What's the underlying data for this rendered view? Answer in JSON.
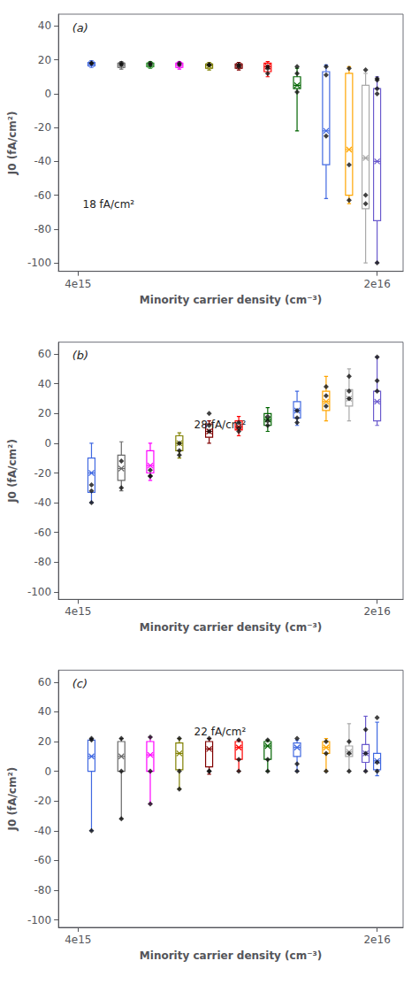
{
  "chart_data": [
    {
      "type": "boxplot",
      "title": "(a)",
      "xlabel": "Minority carrier density (cm⁻³)",
      "ylabel": "J0 (fA/cm²)",
      "annotations": [
        "18 fA/cm²"
      ],
      "log": "x",
      "grid": false,
      "xlim": [
        3600000000000000.0,
        2.3e+16
      ],
      "xticks": [
        {
          "value": 4000000000000000.0,
          "label": "4e15"
        },
        {
          "value": 2e+16,
          "label": "2e16"
        }
      ],
      "ylim": [
        -105,
        47
      ],
      "yticks": [
        -100,
        -80,
        -60,
        -40,
        -20,
        0,
        20,
        40
      ],
      "series": [
        {
          "type": "boxplot",
          "marker": "x",
          "x": [
            4300000000000000.0,
            5050000000000000.0,
            5900000000000000.0,
            6900000000000000.0,
            8100000000000000.0,
            9500000000000000.0,
            1.11e+16,
            1.3e+16,
            1.52e+16,
            1.72e+16,
            1.88e+16,
            2e+16
          ],
          "colors": [
            "#4169E1",
            "#696969",
            "#228B22",
            "#FF00FF",
            "#808000",
            "#800000",
            "#FF0000",
            "#006400",
            "#4169E1",
            "#FFA500",
            "#A9A9A9",
            "#6A5ACD"
          ],
          "boxes": [
            {
              "q1": 16.5,
              "med": 17.5,
              "q3": 18.5,
              "whislo": 15.5,
              "whishi": 19.5,
              "mean": 17.5
            },
            {
              "q1": 15.5,
              "med": 17.0,
              "q3": 18.0,
              "whislo": 14.5,
              "whishi": 19.0,
              "mean": 17.0
            },
            {
              "q1": 16.0,
              "med": 17.0,
              "q3": 18.0,
              "whislo": 15.0,
              "whishi": 19.0,
              "mean": 17.0
            },
            {
              "q1": 15.5,
              "med": 17.0,
              "q3": 18.0,
              "whislo": 14.5,
              "whishi": 19.0,
              "mean": 17.0
            },
            {
              "q1": 15.0,
              "med": 16.5,
              "q3": 17.5,
              "whislo": 14.0,
              "whishi": 18.5,
              "mean": 16.5
            },
            {
              "q1": 15.0,
              "med": 16.5,
              "q3": 17.5,
              "whislo": 14.0,
              "whishi": 18.5,
              "mean": 16.5
            },
            {
              "q1": 13.0,
              "med": 16.0,
              "q3": 18.0,
              "whislo": 10.0,
              "whishi": 19.0,
              "mean": 16.0
            },
            {
              "q1": 3.0,
              "med": 5.0,
              "q3": 10.0,
              "whislo": -22.0,
              "whishi": 15.0,
              "mean": 5.0
            },
            {
              "q1": -42.0,
              "med": -22.0,
              "q3": 13.0,
              "whislo": -62.0,
              "whishi": 17.0,
              "mean": -22.0
            },
            {
              "q1": -60.0,
              "med": -33.0,
              "q3": 12.0,
              "whislo": -65.0,
              "whishi": 16.0,
              "mean": -33.0
            },
            {
              "q1": -68.0,
              "med": -38.0,
              "q3": 5.0,
              "whislo": -100.0,
              "whishi": 12.0,
              "mean": -38.0
            },
            {
              "q1": -75.0,
              "med": -40.0,
              "q3": 3.0,
              "whislo": -100.0,
              "whishi": 10.0,
              "mean": -40.0
            }
          ]
        },
        {
          "type": "scatter",
          "marker": "diamond",
          "color": "#111111",
          "x": [
            4300000000000000.0,
            4300000000000000.0,
            5050000000000000.0,
            5050000000000000.0,
            5900000000000000.0,
            5900000000000000.0,
            6900000000000000.0,
            6900000000000000.0,
            8100000000000000.0,
            8100000000000000.0,
            9500000000000000.0,
            9500000000000000.0,
            1.11e+16,
            1.11e+16,
            1.11e+16,
            1.3e+16,
            1.3e+16,
            1.3e+16,
            1.52e+16,
            1.52e+16,
            1.52e+16,
            1.72e+16,
            1.72e+16,
            1.72e+16,
            1.88e+16,
            1.88e+16,
            1.88e+16,
            2e+16,
            2e+16,
            2e+16,
            2e+16,
            2e+16
          ],
          "values": [
            18,
            18,
            17,
            18,
            17,
            18,
            17,
            18,
            17,
            17,
            16,
            17,
            12,
            15,
            16,
            1,
            12,
            16,
            -25,
            11,
            16,
            -63,
            -42,
            15,
            -65,
            -60,
            14,
            -100,
            9,
            3,
            0,
            8
          ]
        }
      ]
    },
    {
      "type": "boxplot",
      "title": "(b)",
      "xlabel": "Minority carrier density (cm⁻³)",
      "ylabel": "J0 (fA/cm²)",
      "annotations": [
        "28 fA/cm²"
      ],
      "log": "x",
      "grid": false,
      "xlim": [
        3600000000000000.0,
        2.3e+16
      ],
      "xticks": [
        {
          "value": 4000000000000000.0,
          "label": "4e15"
        },
        {
          "value": 2e+16,
          "label": "2e16"
        }
      ],
      "ylim": [
        -105,
        68
      ],
      "yticks": [
        -100,
        -80,
        -60,
        -40,
        -20,
        0,
        20,
        40,
        60
      ],
      "series": [
        {
          "type": "boxplot",
          "marker": "x",
          "x": [
            4300000000000000.0,
            5050000000000000.0,
            5900000000000000.0,
            6900000000000000.0,
            8100000000000000.0,
            9500000000000000.0,
            1.11e+16,
            1.3e+16,
            1.52e+16,
            1.72e+16,
            2e+16
          ],
          "colors": [
            "#4169E1",
            "#696969",
            "#FF00FF",
            "#808000",
            "#800000",
            "#FF0000",
            "#006400",
            "#4169E1",
            "#FFA500",
            "#A9A9A9",
            "#6A5ACD"
          ],
          "boxes": [
            {
              "q1": -33.0,
              "med": -20.0,
              "q3": -10.0,
              "whislo": -40.0,
              "whishi": 0.0,
              "mean": -20.0
            },
            {
              "q1": -25.0,
              "med": -17.0,
              "q3": -8.0,
              "whislo": -32.0,
              "whishi": 1.0,
              "mean": -17.0
            },
            {
              "q1": -20.0,
              "med": -15.0,
              "q3": -5.0,
              "whislo": -25.0,
              "whishi": 0.0,
              "mean": -15.0
            },
            {
              "q1": -5.0,
              "med": 0.0,
              "q3": 5.0,
              "whislo": -10.0,
              "whishi": 7.0,
              "mean": 0.0
            },
            {
              "q1": 4.0,
              "med": 8.0,
              "q3": 13.0,
              "whislo": 0.0,
              "whishi": 15.0,
              "mean": 8.0
            },
            {
              "q1": 9.0,
              "med": 11.0,
              "q3": 15.0,
              "whislo": 5.0,
              "whishi": 18.0,
              "mean": 11.0
            },
            {
              "q1": 12.0,
              "med": 16.0,
              "q3": 20.0,
              "whislo": 8.0,
              "whishi": 24.0,
              "mean": 16.0
            },
            {
              "q1": 17.0,
              "med": 22.0,
              "q3": 28.0,
              "whislo": 12.0,
              "whishi": 35.0,
              "mean": 22.0
            },
            {
              "q1": 22.0,
              "med": 28.0,
              "q3": 35.0,
              "whislo": 15.0,
              "whishi": 45.0,
              "mean": 28.0
            },
            {
              "q1": 25.0,
              "med": 30.0,
              "q3": 36.0,
              "whislo": 15.0,
              "whishi": 50.0,
              "mean": 30.0
            },
            {
              "q1": 15.0,
              "med": 28.0,
              "q3": 35.0,
              "whislo": 12.0,
              "whishi": 58.0,
              "mean": 28.0
            }
          ]
        },
        {
          "type": "scatter",
          "marker": "diamond",
          "color": "#111111",
          "x": [
            4300000000000000.0,
            4300000000000000.0,
            4300000000000000.0,
            5050000000000000.0,
            5050000000000000.0,
            5900000000000000.0,
            5900000000000000.0,
            5900000000000000.0,
            6900000000000000.0,
            6900000000000000.0,
            6900000000000000.0,
            8100000000000000.0,
            8100000000000000.0,
            8100000000000000.0,
            9500000000000000.0,
            9500000000000000.0,
            9500000000000000.0,
            1.11e+16,
            1.11e+16,
            1.11e+16,
            1.3e+16,
            1.3e+16,
            1.3e+16,
            1.52e+16,
            1.52e+16,
            1.52e+16,
            1.72e+16,
            1.72e+16,
            1.72e+16,
            2e+16,
            2e+16,
            2e+16
          ],
          "values": [
            -40,
            -32,
            -28,
            -30,
            -12,
            -22,
            -22,
            -18,
            0,
            -5,
            -8,
            8,
            12,
            20,
            10,
            14,
            8,
            12,
            15,
            18,
            17,
            22,
            14,
            25,
            32,
            38,
            30,
            35,
            45,
            35,
            42,
            58
          ]
        }
      ]
    },
    {
      "type": "boxplot",
      "title": "(c)",
      "xlabel": "Minority carrier density (cm⁻³)",
      "ylabel": "J0 (fA/cm²)",
      "annotations": [
        "22 fA/cm²"
      ],
      "log": "x",
      "grid": false,
      "xlim": [
        3600000000000000.0,
        2.3e+16
      ],
      "xticks": [
        {
          "value": 4000000000000000.0,
          "label": "4e15"
        },
        {
          "value": 2e+16,
          "label": "2e16"
        }
      ],
      "ylim": [
        -105,
        68
      ],
      "yticks": [
        -100,
        -80,
        -60,
        -40,
        -20,
        0,
        20,
        40,
        60
      ],
      "series": [
        {
          "type": "boxplot",
          "marker": "x",
          "x": [
            4300000000000000.0,
            5050000000000000.0,
            5900000000000000.0,
            6900000000000000.0,
            8100000000000000.0,
            9500000000000000.0,
            1.11e+16,
            1.3e+16,
            1.52e+16,
            1.72e+16,
            1.88e+16,
            2e+16
          ],
          "colors": [
            "#4169E1",
            "#696969",
            "#FF00FF",
            "#808000",
            "#800000",
            "#FF0000",
            "#006400",
            "#4169E1",
            "#FFA500",
            "#A9A9A9",
            "#6A5ACD",
            "#4169E1"
          ],
          "boxes": [
            {
              "q1": 0.0,
              "med": 10.0,
              "q3": 21.0,
              "whislo": -40.0,
              "whishi": 22.0,
              "mean": 10.0
            },
            {
              "q1": 0.0,
              "med": 10.0,
              "q3": 20.0,
              "whislo": -32.0,
              "whishi": 22.0,
              "mean": 10.0
            },
            {
              "q1": 0.0,
              "med": 11.0,
              "q3": 20.0,
              "whislo": -22.0,
              "whishi": 23.0,
              "mean": 11.0
            },
            {
              "q1": 1.0,
              "med": 12.0,
              "q3": 19.0,
              "whislo": -12.0,
              "whishi": 22.0,
              "mean": 12.0
            },
            {
              "q1": 3.0,
              "med": 15.0,
              "q3": 20.0,
              "whislo": -2.0,
              "whishi": 22.0,
              "mean": 15.0
            },
            {
              "q1": 8.0,
              "med": 16.0,
              "q3": 20.0,
              "whislo": 0.0,
              "whishi": 21.0,
              "mean": 16.0
            },
            {
              "q1": 8.0,
              "med": 17.0,
              "q3": 20.0,
              "whislo": 0.0,
              "whishi": 21.0,
              "mean": 17.0
            },
            {
              "q1": 10.0,
              "med": 16.0,
              "q3": 19.0,
              "whislo": 0.0,
              "whishi": 21.0,
              "mean": 16.0
            },
            {
              "q1": 12.0,
              "med": 16.0,
              "q3": 20.0,
              "whislo": 0.0,
              "whishi": 22.0,
              "mean": 16.0
            },
            {
              "q1": 10.0,
              "med": 13.0,
              "q3": 17.0,
              "whislo": 0.0,
              "whishi": 32.0,
              "mean": 13.0
            },
            {
              "q1": 6.0,
              "med": 12.0,
              "q3": 18.0,
              "whislo": 0.0,
              "whishi": 37.0,
              "mean": 12.0
            },
            {
              "q1": 1.0,
              "med": 7.0,
              "q3": 12.0,
              "whislo": -3.0,
              "whishi": 33.0,
              "mean": 7.0
            }
          ]
        },
        {
          "type": "scatter",
          "marker": "diamond",
          "color": "#111111",
          "x": [
            4300000000000000.0,
            4300000000000000.0,
            4300000000000000.0,
            5050000000000000.0,
            5050000000000000.0,
            5050000000000000.0,
            5900000000000000.0,
            5900000000000000.0,
            5900000000000000.0,
            6900000000000000.0,
            6900000000000000.0,
            6900000000000000.0,
            8100000000000000.0,
            8100000000000000.0,
            8100000000000000.0,
            9500000000000000.0,
            9500000000000000.0,
            9500000000000000.0,
            1.11e+16,
            1.11e+16,
            1.11e+16,
            1.3e+16,
            1.3e+16,
            1.3e+16,
            1.52e+16,
            1.52e+16,
            1.52e+16,
            1.72e+16,
            1.72e+16,
            1.72e+16,
            1.88e+16,
            1.88e+16,
            1.88e+16,
            2e+16,
            2e+16,
            2e+16
          ],
          "values": [
            22,
            21,
            -40,
            22,
            0,
            -32,
            23,
            0,
            -22,
            22,
            0,
            -12,
            22,
            0,
            0,
            21,
            8,
            0,
            21,
            0,
            8,
            22,
            5,
            0,
            20,
            12,
            0,
            20,
            12,
            0,
            28,
            12,
            0,
            36,
            6,
            0
          ]
        }
      ]
    }
  ]
}
